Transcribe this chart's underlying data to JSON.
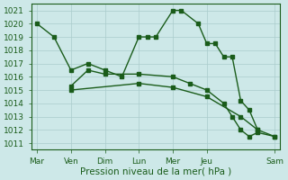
{
  "bg_color": "#cde8e8",
  "grid_color": "#aacccc",
  "line_color": "#1a5c1a",
  "xlabel": "Pression niveau de la mer( hPa )",
  "xlabel_color": "#1a5c1a",
  "tick_color": "#1a5c1a",
  "spine_color": "#1a5c1a",
  "ylim": [
    1010.5,
    1021.5
  ],
  "yticks": [
    1011,
    1012,
    1013,
    1014,
    1015,
    1016,
    1017,
    1018,
    1019,
    1020,
    1021
  ],
  "xtick_labels": [
    "Mar",
    "Ven",
    "Dim",
    "Lun",
    "Mer",
    "Jeu",
    "Sam"
  ],
  "xtick_positions": [
    0,
    24,
    48,
    72,
    96,
    120,
    168
  ],
  "xlim": [
    -4,
    172
  ],
  "series1_x": [
    0,
    12,
    24,
    36,
    48,
    60,
    72,
    78,
    84,
    96,
    102,
    114,
    120,
    126,
    132,
    138,
    144,
    150,
    156
  ],
  "series1_y": [
    1020,
    1019,
    1016.5,
    1017,
    1016.5,
    1016,
    1019,
    1019,
    1019,
    1021,
    1021,
    1020,
    1018.5,
    1018.5,
    1017.5,
    1017.5,
    1014.2,
    1013.5,
    1012
  ],
  "series2_x": [
    24,
    36,
    48,
    72,
    96,
    108,
    120,
    132,
    138,
    144,
    150,
    156,
    168
  ],
  "series2_y": [
    1015.3,
    1016.5,
    1016.2,
    1016.2,
    1016.0,
    1015.5,
    1015.0,
    1014.0,
    1013.0,
    1012.0,
    1011.5,
    1011.8,
    1011.5
  ],
  "series3_x": [
    24,
    72,
    96,
    120,
    144,
    156,
    168
  ],
  "series3_y": [
    1015.0,
    1015.5,
    1015.2,
    1014.5,
    1013.0,
    1012.0,
    1011.5
  ],
  "line_width": 1.0,
  "marker_size": 2.2,
  "font_size": 6.5,
  "xlabel_fontsize": 7.5
}
